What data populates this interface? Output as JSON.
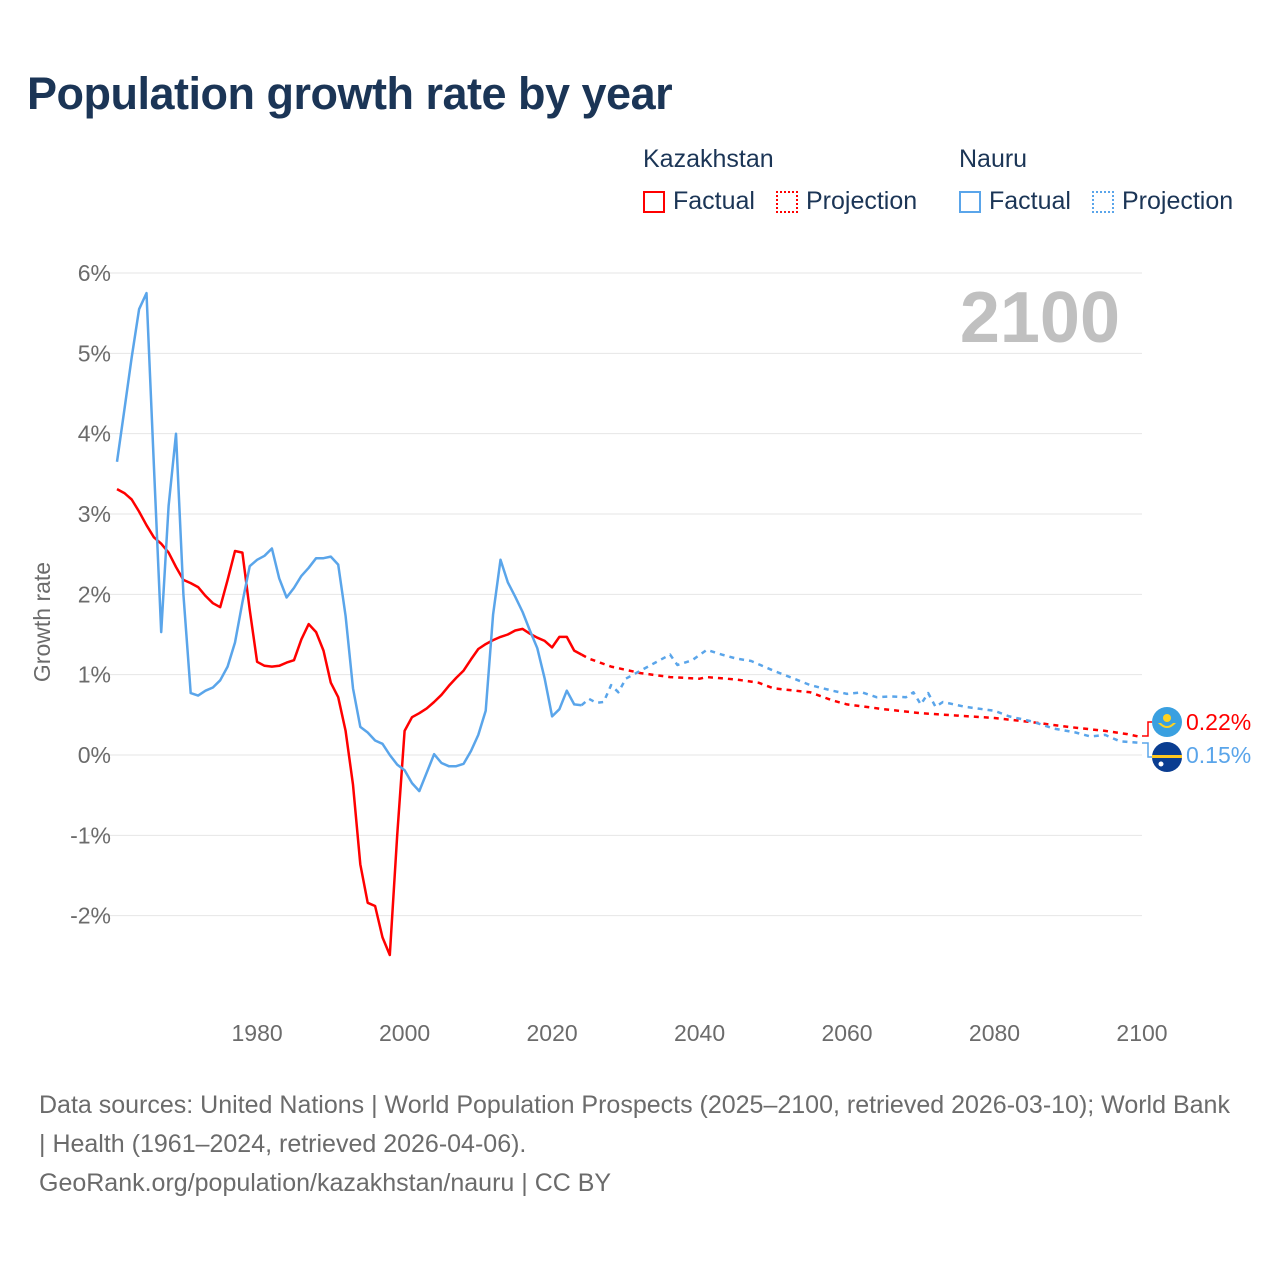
{
  "title": "Population growth rate by year",
  "legend": {
    "groups": [
      {
        "country": "Kazakhstan",
        "factual": "Factual",
        "projection": "Projection",
        "color": "#ff0000"
      },
      {
        "country": "Nauru",
        "factual": "Factual",
        "projection": "Projection",
        "color": "#5aa5ea"
      }
    ]
  },
  "year_display": "2100",
  "end_labels": {
    "kazakhstan": "0.22%",
    "nauru": "0.15%"
  },
  "footer": {
    "sources": "Data sources: United Nations | World Population Prospects (2025–2100, retrieved 2026-03-10); World Bank | Health (1961–2024, retrieved 2026-04-06).",
    "credit": "GeoRank.org/population/kazakhstan/nauru | CC BY"
  },
  "chart_data": {
    "type": "line",
    "title": "Population growth rate by year",
    "xlabel": "",
    "ylabel": "Growth rate",
    "xlim": [
      1961,
      2100
    ],
    "ylim": [
      -3,
      6
    ],
    "x_ticks": [
      1980,
      2000,
      2020,
      2040,
      2060,
      2080,
      2100
    ],
    "x_tick_labels": [
      "1980",
      "2000",
      "2020",
      "2040",
      "2060",
      "2080",
      "2100"
    ],
    "y_ticks": [
      6,
      5,
      4,
      3,
      2,
      1,
      0,
      -1,
      -2
    ],
    "y_tick_labels": [
      "6%",
      "5%",
      "4%",
      "3%",
      "2%",
      "1%",
      "0%",
      "-1%",
      "-2%"
    ],
    "grid": true,
    "legend_position": "top-right",
    "series": [
      {
        "name": "Kazakhstan Factual",
        "color": "#ff0000",
        "dashed": false,
        "points": [
          [
            1961,
            3.31
          ],
          [
            1962,
            3.26
          ],
          [
            1963,
            3.18
          ],
          [
            1964,
            3.03
          ],
          [
            1965,
            2.86
          ],
          [
            1966,
            2.71
          ],
          [
            1967,
            2.63
          ],
          [
            1968,
            2.52
          ],
          [
            1969,
            2.34
          ],
          [
            1970,
            2.18
          ],
          [
            1971,
            2.14
          ],
          [
            1972,
            2.09
          ],
          [
            1973,
            1.98
          ],
          [
            1974,
            1.89
          ],
          [
            1975,
            1.84
          ],
          [
            1976,
            2.18
          ],
          [
            1977,
            2.54
          ],
          [
            1978,
            2.52
          ],
          [
            1979,
            1.81
          ],
          [
            1980,
            1.16
          ],
          [
            1981,
            1.11
          ],
          [
            1982,
            1.1
          ],
          [
            1983,
            1.11
          ],
          [
            1984,
            1.15
          ],
          [
            1985,
            1.18
          ],
          [
            1986,
            1.44
          ],
          [
            1987,
            1.63
          ],
          [
            1988,
            1.53
          ],
          [
            1989,
            1.3
          ],
          [
            1990,
            0.9
          ],
          [
            1991,
            0.72
          ],
          [
            1992,
            0.3
          ],
          [
            1993,
            -0.37
          ],
          [
            1994,
            -1.36
          ],
          [
            1995,
            -1.84
          ],
          [
            1996,
            -1.88
          ],
          [
            1997,
            -2.27
          ],
          [
            1998,
            -2.49
          ],
          [
            1999,
            -1.0
          ],
          [
            2000,
            0.3
          ],
          [
            2001,
            0.47
          ],
          [
            2002,
            0.52
          ],
          [
            2003,
            0.58
          ],
          [
            2004,
            0.66
          ],
          [
            2005,
            0.75
          ],
          [
            2006,
            0.86
          ],
          [
            2007,
            0.96
          ],
          [
            2008,
            1.05
          ],
          [
            2009,
            1.19
          ],
          [
            2010,
            1.32
          ],
          [
            2011,
            1.38
          ],
          [
            2012,
            1.43
          ],
          [
            2013,
            1.47
          ],
          [
            2014,
            1.5
          ],
          [
            2015,
            1.55
          ],
          [
            2016,
            1.57
          ],
          [
            2017,
            1.51
          ],
          [
            2018,
            1.46
          ],
          [
            2019,
            1.42
          ],
          [
            2020,
            1.34
          ],
          [
            2021,
            1.47
          ],
          [
            2022,
            1.47
          ],
          [
            2023,
            1.3
          ],
          [
            2024,
            1.25
          ]
        ]
      },
      {
        "name": "Kazakhstan Projection",
        "color": "#ff0000",
        "dashed": true,
        "points": [
          [
            2024,
            1.25
          ],
          [
            2025,
            1.2
          ],
          [
            2028,
            1.1
          ],
          [
            2032,
            1.02
          ],
          [
            2036,
            0.97
          ],
          [
            2040,
            0.95
          ],
          [
            2041,
            0.97
          ],
          [
            2045,
            0.94
          ],
          [
            2048,
            0.9
          ],
          [
            2050,
            0.83
          ],
          [
            2055,
            0.78
          ],
          [
            2058,
            0.68
          ],
          [
            2060,
            0.63
          ],
          [
            2065,
            0.57
          ],
          [
            2070,
            0.52
          ],
          [
            2075,
            0.49
          ],
          [
            2080,
            0.46
          ],
          [
            2085,
            0.41
          ],
          [
            2090,
            0.35
          ],
          [
            2095,
            0.3
          ],
          [
            2098,
            0.26
          ],
          [
            2100,
            0.22
          ]
        ]
      },
      {
        "name": "Nauru Factual",
        "color": "#5aa5ea",
        "dashed": false,
        "points": [
          [
            1961,
            3.65
          ],
          [
            1962,
            4.3
          ],
          [
            1963,
            4.95
          ],
          [
            1964,
            5.55
          ],
          [
            1965,
            5.75
          ],
          [
            1966,
            3.6
          ],
          [
            1967,
            1.53
          ],
          [
            1968,
            3.1
          ],
          [
            1969,
            4.0
          ],
          [
            1970,
            2.0
          ],
          [
            1971,
            0.77
          ],
          [
            1972,
            0.74
          ],
          [
            1973,
            0.8
          ],
          [
            1974,
            0.84
          ],
          [
            1975,
            0.93
          ],
          [
            1976,
            1.1
          ],
          [
            1977,
            1.4
          ],
          [
            1978,
            1.9
          ],
          [
            1979,
            2.35
          ],
          [
            1980,
            2.43
          ],
          [
            1981,
            2.48
          ],
          [
            1982,
            2.57
          ],
          [
            1983,
            2.2
          ],
          [
            1984,
            1.96
          ],
          [
            1985,
            2.08
          ],
          [
            1986,
            2.23
          ],
          [
            1987,
            2.33
          ],
          [
            1988,
            2.45
          ],
          [
            1989,
            2.45
          ],
          [
            1990,
            2.47
          ],
          [
            1991,
            2.37
          ],
          [
            1992,
            1.73
          ],
          [
            1993,
            0.83
          ],
          [
            1994,
            0.35
          ],
          [
            1995,
            0.28
          ],
          [
            1996,
            0.18
          ],
          [
            1997,
            0.14
          ],
          [
            1998,
            0.0
          ],
          [
            1999,
            -0.12
          ],
          [
            2000,
            -0.19
          ],
          [
            2001,
            -0.35
          ],
          [
            2002,
            -0.45
          ],
          [
            2003,
            -0.22
          ],
          [
            2004,
            0.01
          ],
          [
            2005,
            -0.1
          ],
          [
            2006,
            -0.14
          ],
          [
            2007,
            -0.14
          ],
          [
            2008,
            -0.11
          ],
          [
            2009,
            0.05
          ],
          [
            2010,
            0.25
          ],
          [
            2011,
            0.55
          ],
          [
            2012,
            1.75
          ],
          [
            2013,
            2.43
          ],
          [
            2014,
            2.15
          ],
          [
            2015,
            1.97
          ],
          [
            2016,
            1.78
          ],
          [
            2017,
            1.55
          ],
          [
            2018,
            1.33
          ],
          [
            2019,
            0.95
          ],
          [
            2020,
            0.48
          ],
          [
            2021,
            0.57
          ],
          [
            2022,
            0.8
          ],
          [
            2023,
            0.63
          ],
          [
            2024,
            0.62
          ]
        ]
      },
      {
        "name": "Nauru Projection",
        "color": "#5aa5ea",
        "dashed": true,
        "points": [
          [
            2024,
            0.62
          ],
          [
            2025,
            0.7
          ],
          [
            2026,
            0.65
          ],
          [
            2027,
            0.66
          ],
          [
            2028,
            0.87
          ],
          [
            2029,
            0.78
          ],
          [
            2030,
            0.95
          ],
          [
            2032,
            1.05
          ],
          [
            2034,
            1.15
          ],
          [
            2036,
            1.25
          ],
          [
            2037,
            1.12
          ],
          [
            2039,
            1.18
          ],
          [
            2041,
            1.31
          ],
          [
            2043,
            1.25
          ],
          [
            2045,
            1.2
          ],
          [
            2047,
            1.17
          ],
          [
            2050,
            1.05
          ],
          [
            2052,
            0.98
          ],
          [
            2055,
            0.87
          ],
          [
            2058,
            0.8
          ],
          [
            2060,
            0.76
          ],
          [
            2062,
            0.78
          ],
          [
            2064,
            0.72
          ],
          [
            2066,
            0.73
          ],
          [
            2068,
            0.72
          ],
          [
            2069,
            0.78
          ],
          [
            2070,
            0.63
          ],
          [
            2071,
            0.77
          ],
          [
            2072,
            0.6
          ],
          [
            2073,
            0.66
          ],
          [
            2076,
            0.6
          ],
          [
            2080,
            0.55
          ],
          [
            2082,
            0.48
          ],
          [
            2085,
            0.42
          ],
          [
            2088,
            0.33
          ],
          [
            2091,
            0.28
          ],
          [
            2093,
            0.23
          ],
          [
            2095,
            0.25
          ],
          [
            2097,
            0.17
          ],
          [
            2100,
            0.15
          ]
        ]
      }
    ]
  }
}
